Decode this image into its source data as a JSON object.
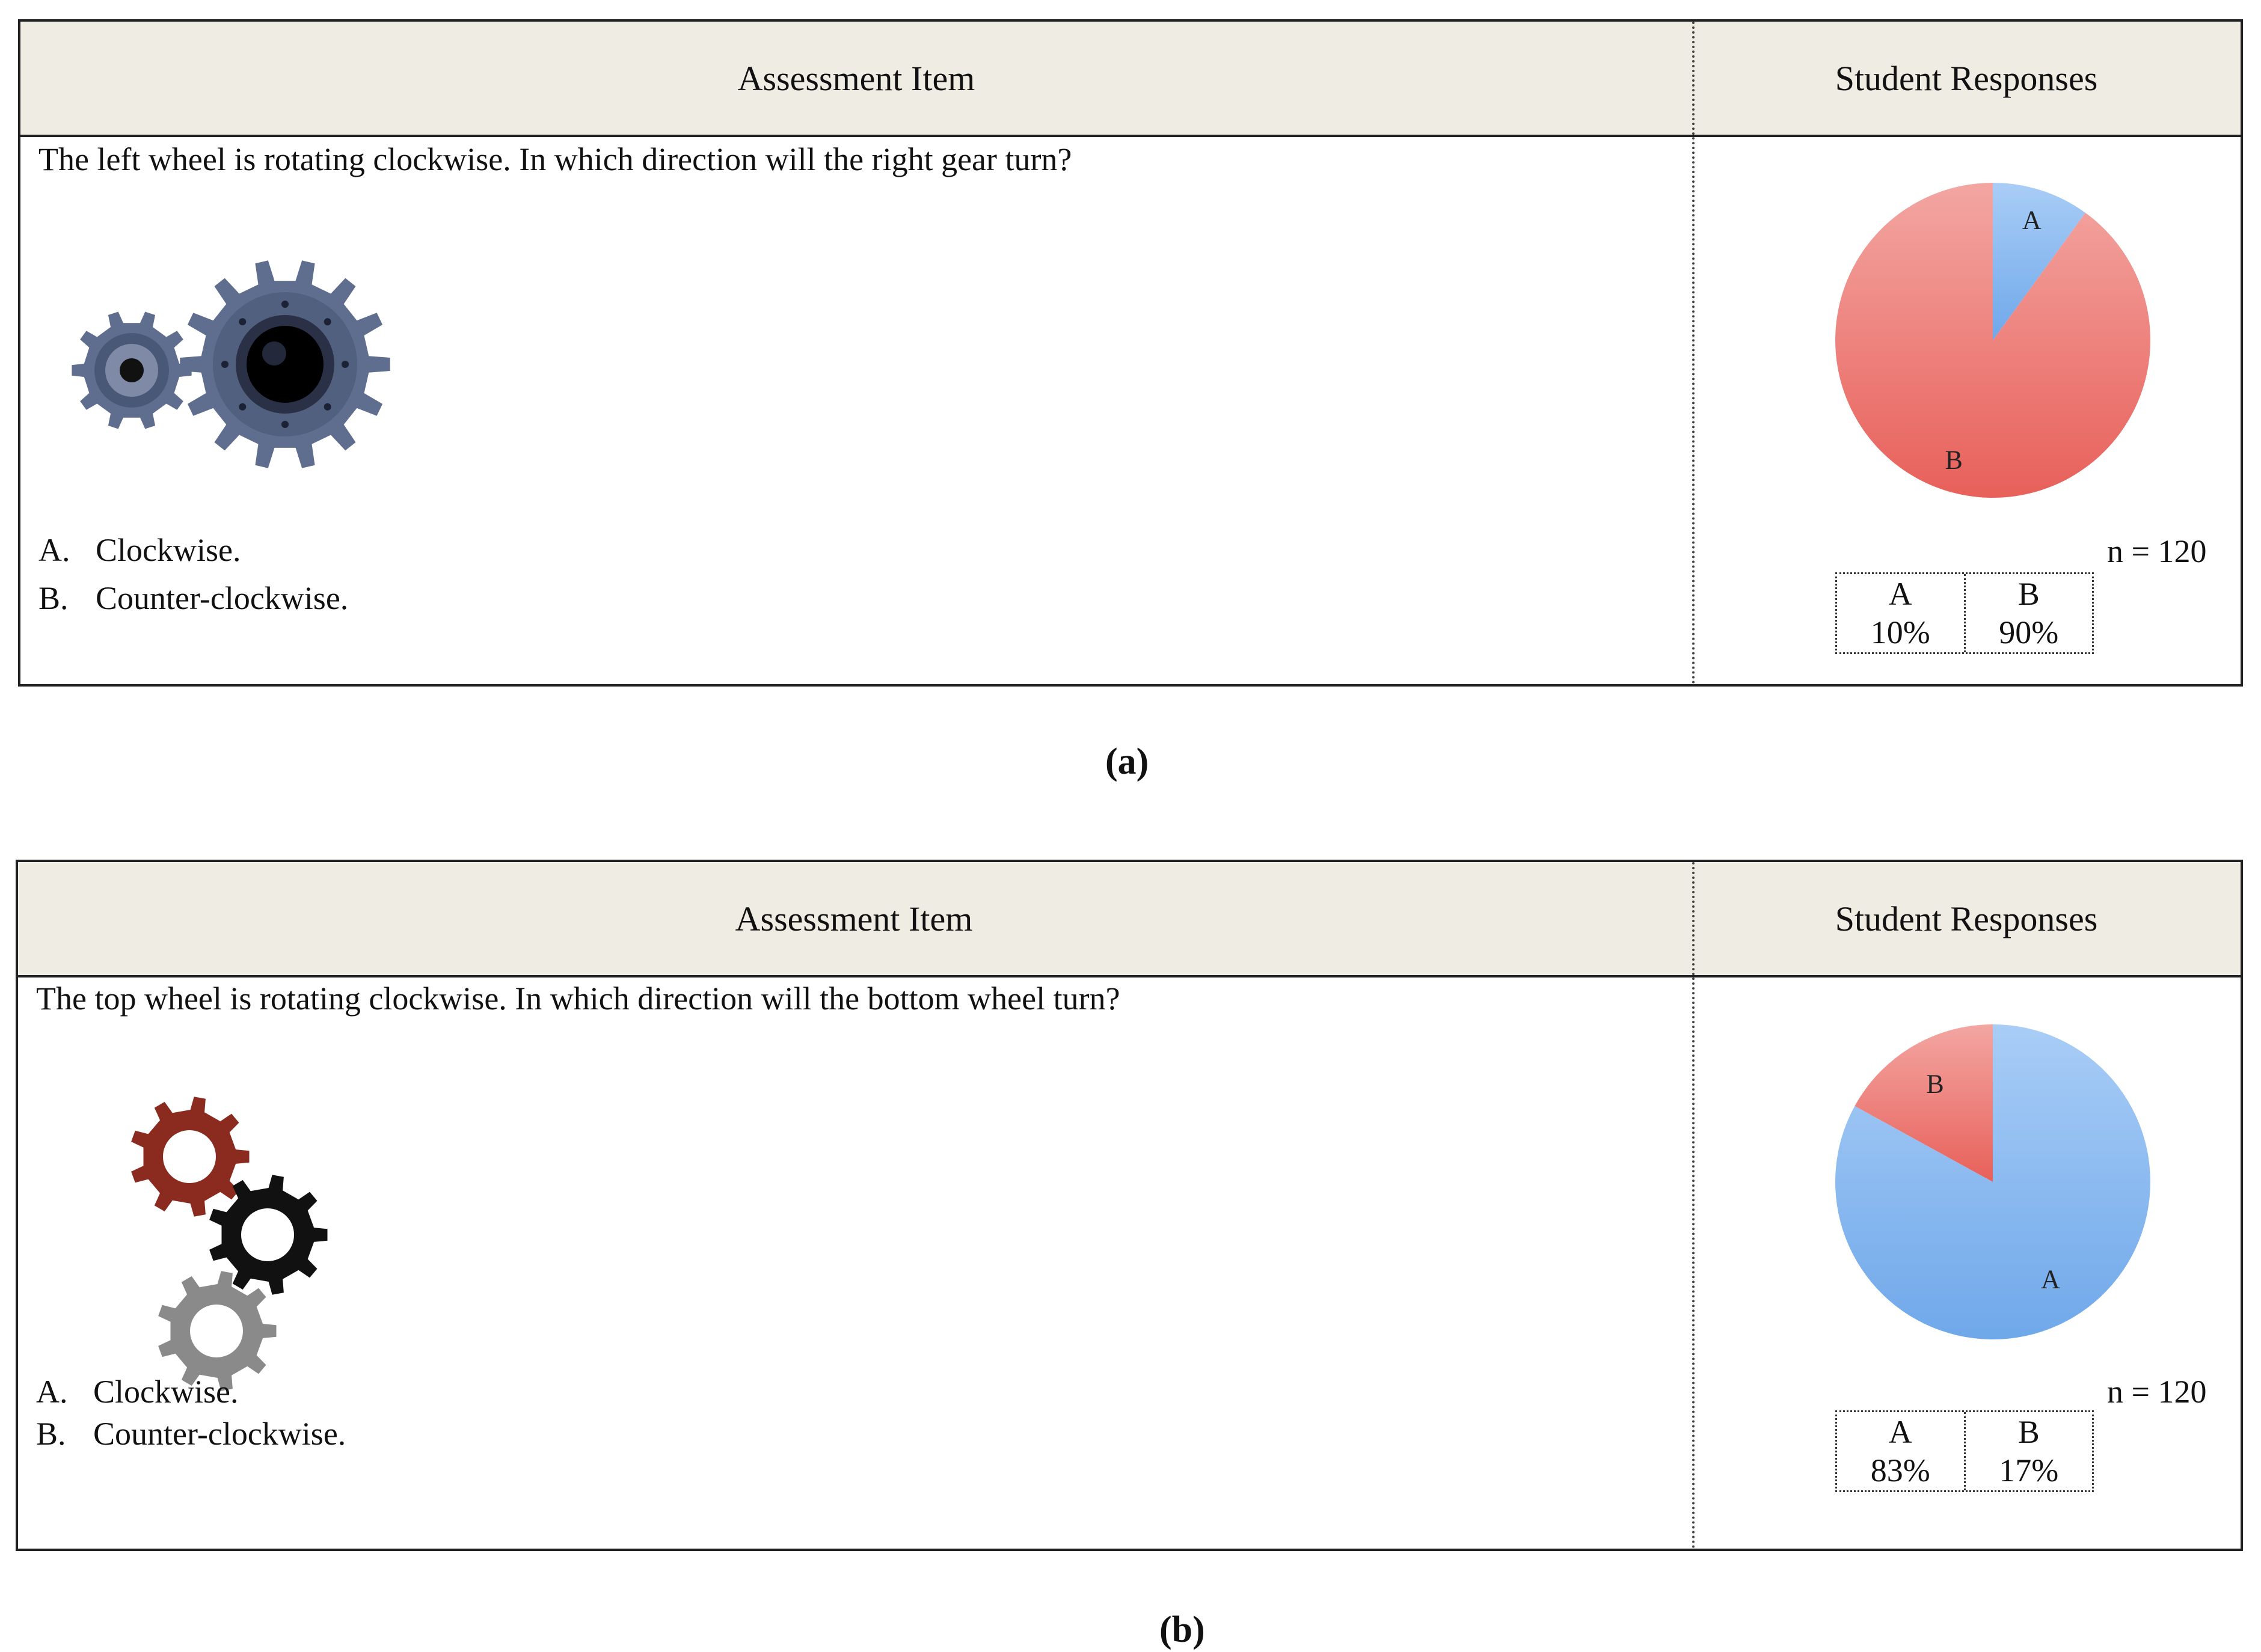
{
  "panels": [
    {
      "id": "a",
      "header_item": "Assessment Item",
      "header_responses": "Student Responses",
      "question": "The left wheel is rotating clockwise. In which direction will the right gear turn?",
      "options": [
        {
          "letter": "A.",
          "text": "Clockwise."
        },
        {
          "letter": "B.",
          "text": "Counter-clockwise."
        }
      ],
      "n_label": "n = 120",
      "caption": "(a)",
      "gear_colors": {
        "gear_left": "#5f6e8e",
        "gear_right": "#5f6e8e"
      }
    },
    {
      "id": "b",
      "header_item": "Assessment Item",
      "header_responses": "Student Responses",
      "question": "The top wheel is rotating clockwise. In which direction will the bottom wheel turn?",
      "options": [
        {
          "letter": "A.",
          "text": "Clockwise."
        },
        {
          "letter": "B.",
          "text": "Counter-clockwise."
        }
      ],
      "n_label": "n = 120",
      "caption": "(b)",
      "gear_colors": {
        "gear_top": "#8b2a1f",
        "gear_middle": "#111111",
        "gear_bottom": "#8a8a8a"
      }
    }
  ],
  "chart_data": [
    {
      "type": "pie",
      "categories": [
        "A",
        "B"
      ],
      "values": [
        10,
        90
      ],
      "value_labels": [
        "10%",
        "90%"
      ],
      "colors": {
        "A": "#6fa8ea",
        "B": "#e8605a"
      }
    },
    {
      "type": "pie",
      "categories": [
        "A",
        "B"
      ],
      "values": [
        83,
        17
      ],
      "value_labels": [
        "83%",
        "17%"
      ],
      "colors": {
        "A": "#6fa8ea",
        "B": "#e8605a"
      }
    }
  ]
}
